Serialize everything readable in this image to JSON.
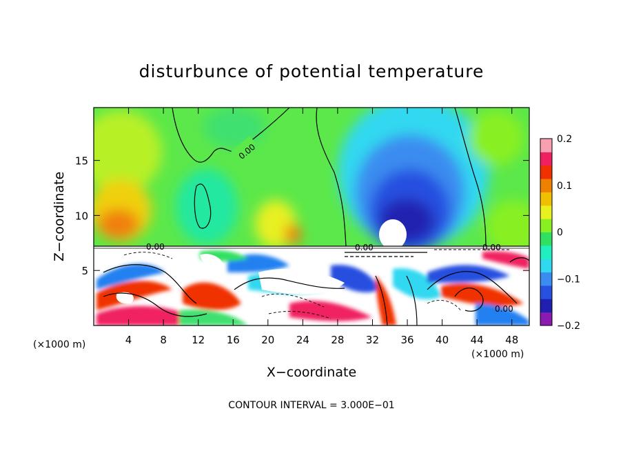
{
  "chart_data": {
    "type": "heatmap",
    "title": "disturbunce of potential temperature",
    "xlabel": "X−coordinate",
    "ylabel": "Z−coordinate",
    "x_unit": "(×1000 m)",
    "y_unit": "(×1000 m)",
    "x_ticks": [
      4,
      8,
      12,
      16,
      20,
      24,
      28,
      32,
      36,
      40,
      44,
      48
    ],
    "x_tick_labels": [
      "4",
      "8",
      "12",
      "16",
      "20",
      "24",
      "28",
      "32",
      "36",
      "40",
      "44",
      "48"
    ],
    "y_ticks": [
      5,
      10,
      15
    ],
    "y_tick_labels": [
      "5",
      "10",
      "15"
    ],
    "xlim": [
      0,
      50
    ],
    "ylim": [
      0,
      19.8
    ],
    "colorbar": {
      "range": [
        -0.2,
        0.2
      ],
      "tick_values": [
        0.2,
        0.1,
        0,
        -0.1,
        -0.2
      ],
      "tick_labels": [
        "0.2",
        "0.1",
        "0",
        "−0.1",
        "−0.2"
      ],
      "colors": [
        "#8a1ab0",
        "#2020b0",
        "#2850e0",
        "#3a8cf0",
        "#30d8f0",
        "#20f0c0",
        "#30e060",
        "#88f020",
        "#e8f020",
        "#f0c000",
        "#f08000",
        "#f03000",
        "#f02060",
        "#f8a0b0"
      ]
    },
    "contour_labels": [
      "0.00",
      "0.00",
      "0.00",
      "0.00",
      "0.00"
    ],
    "footer": "CONTOUR INTERVAL = 3.000E−01"
  }
}
